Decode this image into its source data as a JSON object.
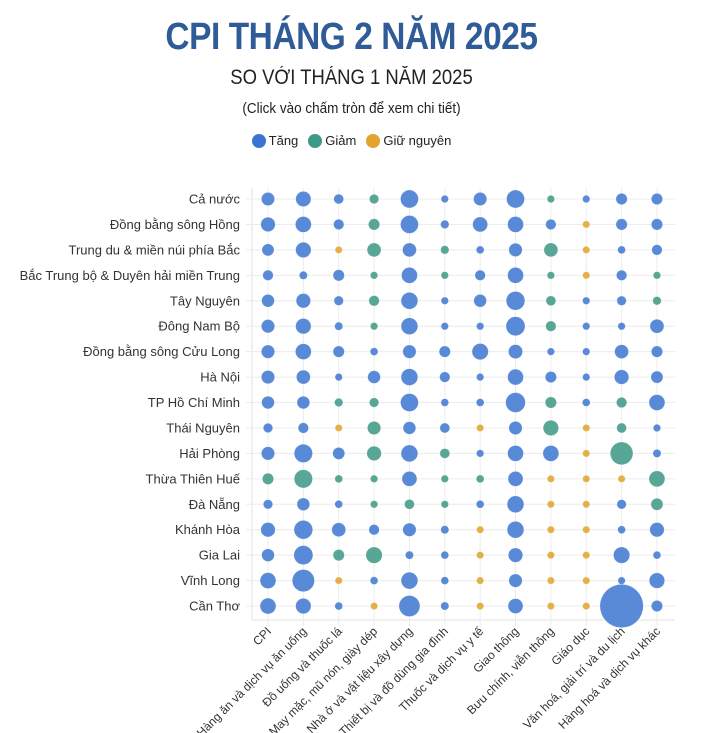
{
  "chart_data": {
    "type": "scatter",
    "subtype": "bubble-matrix",
    "title": "CPI THÁNG 2 NĂM 2025",
    "subtitle": "SO VỚI THÁNG 1 NĂM 2025",
    "note": "(Click vào chấm tròn để xem chi tiết)",
    "legend": {
      "placement": "top",
      "items": [
        {
          "key": "up",
          "label": "Tăng",
          "color": "#3b73d1"
        },
        {
          "key": "down",
          "label": "Giảm",
          "color": "#3d9a88"
        },
        {
          "key": "flat",
          "label": "Giữ nguyên",
          "color": "#e2a42c"
        }
      ]
    },
    "colors": {
      "up": "#4a80d4",
      "down": "#4a9e8c",
      "flat": "#e3a93a",
      "grid": "#e6e6e6"
    },
    "size_note": "Bubble size ∝ magnitude of change (%); values estimated from bubble sizes",
    "columns": [
      "CPI",
      "Hàng ăn và dịch vụ ăn uống",
      "Đồ uống và thuốc lá",
      "May mặc, mũ nón, giày dép",
      "Nhà ở và vật liệu xây dựng",
      "Thiết bị và đồ dùng gia đình",
      "Thuốc và dịch vụ y tế",
      "Giao thông",
      "Bưu chính, viễn thông",
      "Giáo dục",
      "Văn hoá, giải trí và du lịch",
      "Hàng hoá và dịch vụ khác"
    ],
    "rows": [
      {
        "label": "Cả nước",
        "values": [
          0.34,
          0.53,
          0.12,
          -0.1,
          0.85,
          0.03,
          0.34,
          0.85,
          -0.03,
          0.03,
          0.2,
          0.2
        ]
      },
      {
        "label": "Đồng bằng sông Hồng",
        "values": [
          0.45,
          0.6,
          0.15,
          -0.2,
          0.85,
          0.06,
          0.5,
          0.6,
          0.15,
          0,
          0.2,
          0.2
        ]
      },
      {
        "label": "Trung du & miền núi phía Bắc",
        "values": [
          0.25,
          0.55,
          0,
          -0.4,
          0.4,
          -0.06,
          0.04,
          0.35,
          -0.4,
          0,
          0.04,
          0.15
        ]
      },
      {
        "label": "Bắc Trung bộ & Duyên hải miền Trung",
        "values": [
          0.15,
          0.05,
          0.2,
          -0.03,
          0.6,
          -0.03,
          0.15,
          0.6,
          -0.03,
          0,
          0.15,
          -0.03
        ]
      },
      {
        "label": "Tây Nguyên",
        "values": [
          0.3,
          0.45,
          0.1,
          -0.15,
          0.7,
          0.03,
          0.3,
          0.95,
          -0.12,
          0.03,
          0.1,
          -0.06
        ]
      },
      {
        "label": "Đông Nam Bộ",
        "values": [
          0.35,
          0.55,
          0.05,
          -0.03,
          0.7,
          0.03,
          0.03,
          1.0,
          -0.15,
          0.03,
          0.03,
          0.4
        ]
      },
      {
        "label": "Đồng bằng sông Cửu Long",
        "values": [
          0.35,
          0.6,
          0.2,
          0.04,
          0.35,
          0.2,
          0.65,
          0.42,
          0.03,
          0.03,
          0.4,
          0.2
        ]
      },
      {
        "label": "Hà Nội",
        "values": [
          0.35,
          0.4,
          0.03,
          0.3,
          0.7,
          0.15,
          0.03,
          0.6,
          0.2,
          0.03,
          0.45,
          0.25
        ]
      },
      {
        "label": "TP Hồ Chí Minh",
        "values": [
          0.3,
          0.3,
          -0.06,
          -0.1,
          0.85,
          0.04,
          0.04,
          1.1,
          -0.2,
          0.04,
          -0.15,
          0.6
        ]
      },
      {
        "label": "Thái Nguyên",
        "values": [
          0.1,
          0.15,
          0,
          -0.35,
          0.3,
          0.12,
          0,
          0.35,
          -0.55,
          0,
          -0.12,
          0.03
        ]
      },
      {
        "label": "Hải Phòng",
        "values": [
          0.35,
          0.9,
          0.25,
          -0.45,
          0.7,
          -0.12,
          0.03,
          0.6,
          0.6,
          0,
          -1.6,
          0.05
        ]
      },
      {
        "label": "Thừa Thiên Huế",
        "values": [
          -0.2,
          -0.9,
          -0.04,
          -0.03,
          0.5,
          -0.03,
          -0.04,
          0.5,
          0,
          0,
          0,
          -0.6
        ]
      },
      {
        "label": "Đà Nẵng",
        "values": [
          0.1,
          0.3,
          0.04,
          -0.03,
          -0.12,
          -0.03,
          0.04,
          0.7,
          0,
          0,
          0.1,
          -0.25
        ]
      },
      {
        "label": "Khánh Hòa",
        "values": [
          0.45,
          0.95,
          0.4,
          0.15,
          0.35,
          0.05,
          0,
          0.7,
          0,
          0,
          0.04,
          0.45
        ]
      },
      {
        "label": "Gia Lai",
        "values": [
          0.3,
          1.0,
          -0.2,
          -0.65,
          0.05,
          0.04,
          0,
          0.45,
          0,
          0,
          0.65,
          0.04
        ]
      },
      {
        "label": "Vĩnh Long",
        "values": [
          0.6,
          1.5,
          0,
          0.04,
          0.7,
          0.04,
          0,
          0.35,
          0,
          0,
          0.03,
          0.55
        ]
      },
      {
        "label": "Cần Thơ",
        "values": [
          0.6,
          0.55,
          0.04,
          0,
          1.3,
          0.05,
          0,
          0.5,
          0,
          0,
          7.5,
          0.2
        ]
      }
    ],
    "xlabel": "",
    "ylabel": "",
    "grid": true
  }
}
